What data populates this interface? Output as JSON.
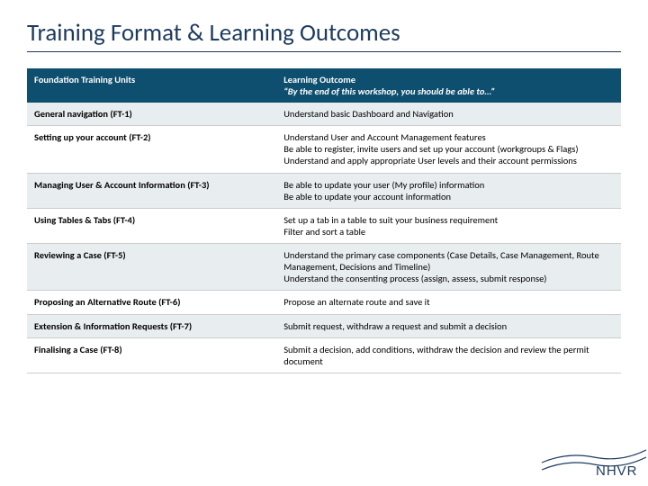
{
  "title": "Training Format & Learning Outcomes",
  "header": {
    "col1": "Foundation Training Units",
    "col2_main": "Learning Outcome",
    "col2_sub": "“By the end of this workshop, you  should be able to…”"
  },
  "rows": [
    {
      "unit": "General navigation (FT-1)",
      "outcome": [
        "Understand basic Dashboard and Navigation"
      ]
    },
    {
      "unit": "Setting up your account (FT-2)",
      "outcome": [
        "Understand User and Account Management features",
        "Be able to register, invite users and set up your account (workgroups & Flags)",
        "Understand and apply appropriate User levels and their account permissions"
      ]
    },
    {
      "unit": "Managing User & Account Information (FT-3)",
      "outcome": [
        "Be able to update your user (My profile) information",
        "Be able to update your account information"
      ]
    },
    {
      "unit": "Using Tables & Tabs (FT-4)",
      "outcome": [
        "Set up a tab in a table to suit your business requirement",
        "Filter and sort a table"
      ]
    },
    {
      "unit": "Reviewing a Case (FT-5)",
      "outcome": [
        "Understand the primary case components (Case Details, Case Management, Route Management, Decisions and Timeline)",
        "Understand the consenting process (assign, assess, submit response)"
      ]
    },
    {
      "unit": "Proposing an Alternative Route (FT-6)",
      "outcome": [
        "Propose an alternate route and save it"
      ]
    },
    {
      "unit": "Extension & Information Requests (FT-7)",
      "outcome": [
        "Submit request, withdraw a request and submit a decision"
      ]
    },
    {
      "unit": "Finalising a Case (FT-8)",
      "outcome": [
        "Submit a decision, add conditions, withdraw the decision and review the permit document"
      ]
    }
  ],
  "colors": {
    "title": "#1c3a5e",
    "header_bg": "#0e4e6e",
    "row_alt_bg": "#e8edf0",
    "row_bg": "#ffffff",
    "border": "#cccccc",
    "logo": "#1c3a5e"
  },
  "logo_text": "NHVR"
}
